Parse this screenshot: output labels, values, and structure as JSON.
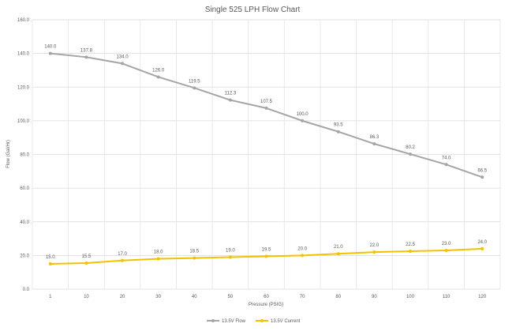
{
  "chart_data": {
    "type": "line",
    "title": "Single 525 LPH Flow Chart",
    "xlabel": "Pressure (PSIG)",
    "ylabel": "Flow (Gal/Hr)",
    "categories": [
      "1",
      "10",
      "20",
      "30",
      "40",
      "50",
      "60",
      "70",
      "80",
      "90",
      "100",
      "110",
      "120"
    ],
    "ylim": [
      0,
      160
    ],
    "yticks": [
      "0.0",
      "20.0",
      "40.0",
      "60.0",
      "80.0",
      "100.0",
      "120.0",
      "140.0",
      "160.0"
    ],
    "grid": true,
    "legend_position": "bottom",
    "series": [
      {
        "name": "13.5V Flow",
        "color": "#a5a5a5",
        "values": [
          140.0,
          137.8,
          134.0,
          126.0,
          119.5,
          112.3,
          107.5,
          100.0,
          93.5,
          86.3,
          80.2,
          74.0,
          66.5
        ],
        "labels": [
          "140.0",
          "137.8",
          "134.0",
          "126.0",
          "119.5",
          "112.3",
          "107.5",
          "100.0",
          "93.5",
          "86.3",
          "80.2",
          "74.0",
          "66.5"
        ]
      },
      {
        "name": "13.5V Current",
        "color": "#f2c200",
        "values": [
          15.0,
          15.5,
          17.0,
          18.0,
          18.5,
          19.0,
          19.5,
          20.0,
          21.0,
          22.0,
          22.5,
          23.0,
          24.0
        ],
        "labels": [
          "15.0",
          "15.5",
          "17.0",
          "18.0",
          "18.5",
          "19.0",
          "19.5",
          "20.0",
          "21.0",
          "22.0",
          "22.5",
          "23.0",
          "24.0"
        ]
      }
    ]
  }
}
